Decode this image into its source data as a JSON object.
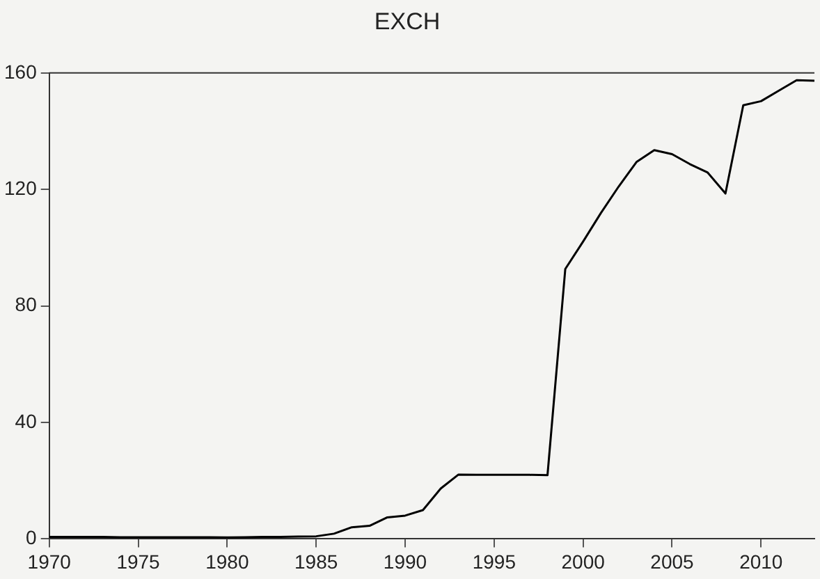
{
  "chart_data": {
    "type": "line",
    "title": "EXCH",
    "x": [
      1970,
      1971,
      1972,
      1973,
      1974,
      1975,
      1976,
      1977,
      1978,
      1979,
      1980,
      1981,
      1982,
      1983,
      1984,
      1985,
      1986,
      1987,
      1988,
      1989,
      1990,
      1991,
      1992,
      1993,
      1994,
      1995,
      1996,
      1997,
      1998,
      1999,
      2000,
      2001,
      2002,
      2003,
      2004,
      2005,
      2006,
      2007,
      2008,
      2009,
      2010,
      2011,
      2012,
      2013
    ],
    "series": [
      {
        "color": "#000000",
        "values": [
          0.7,
          0.7,
          0.7,
          0.7,
          0.6,
          0.6,
          0.6,
          0.6,
          0.6,
          0.6,
          0.5,
          0.6,
          0.7,
          0.7,
          0.8,
          0.9,
          1.8,
          4.0,
          4.5,
          7.4,
          8.0,
          9.9,
          17.3,
          22.1,
          22.0,
          22.0,
          22.0,
          22.0,
          21.9,
          92.7,
          102.1,
          111.9,
          121.0,
          129.4,
          133.5,
          132.1,
          128.7,
          125.8,
          118.6,
          148.9,
          150.3,
          153.9,
          157.5,
          157.3
        ]
      }
    ],
    "xlim": [
      1970,
      2013
    ],
    "xticks": [
      1970,
      1975,
      1980,
      1985,
      1990,
      1995,
      2000,
      2005,
      2010
    ],
    "ylim": [
      0,
      160
    ],
    "yticks": [
      0,
      40,
      80,
      120,
      160
    ],
    "grid": false,
    "legend": false,
    "marker": "none",
    "line_style": "solid"
  }
}
